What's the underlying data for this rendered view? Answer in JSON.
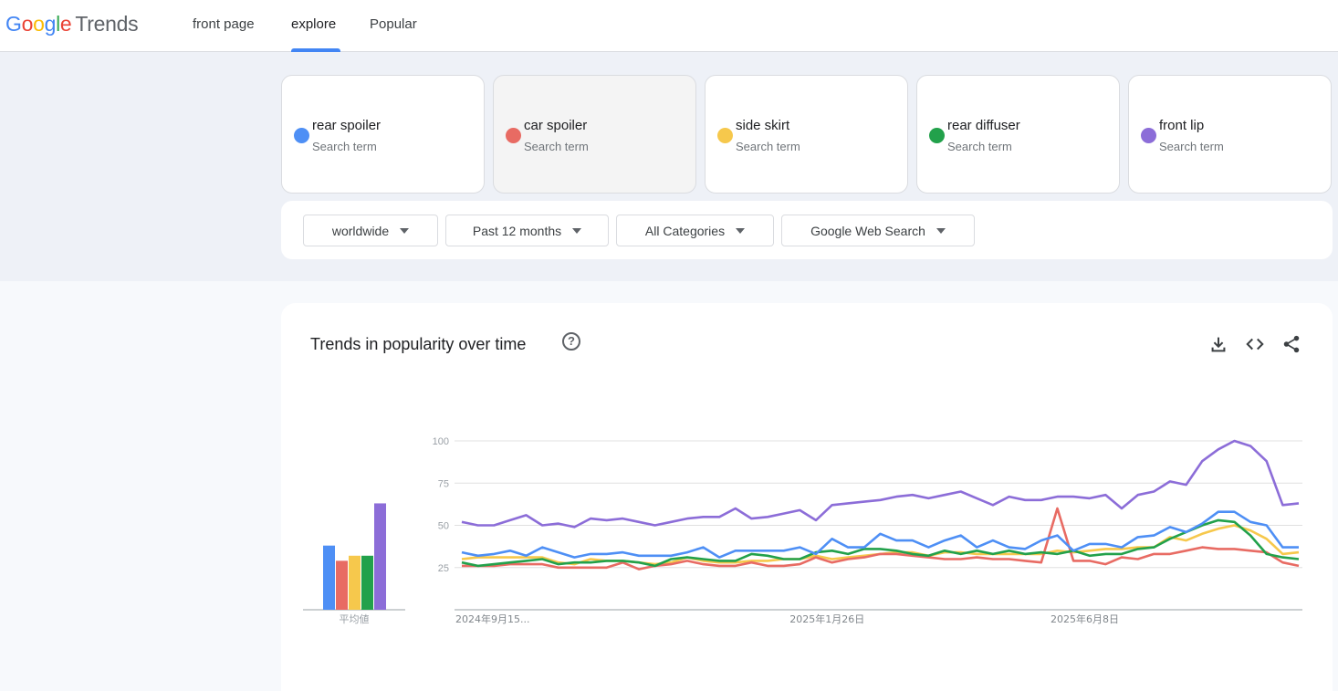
{
  "header": {
    "logo_google": [
      "G",
      "o",
      "o",
      "g",
      "l",
      "e"
    ],
    "logo_trends": "Trends",
    "tabs": [
      {
        "label": "front page",
        "active": false
      },
      {
        "label": "explore",
        "active": true
      },
      {
        "label": "Popular",
        "active": false
      }
    ]
  },
  "terms": [
    {
      "name": "rear spoiler",
      "sub": "Search term",
      "color": "#4e8ff5"
    },
    {
      "name": "car spoiler",
      "sub": "Search term",
      "color": "#e86b63"
    },
    {
      "name": "side skirt",
      "sub": "Search term",
      "color": "#f6c84c"
    },
    {
      "name": "rear diffuser",
      "sub": "Search term",
      "color": "#22a14b"
    },
    {
      "name": "front lip",
      "sub": "Search term",
      "color": "#8c6dd8"
    }
  ],
  "filters": {
    "region": "worldwide",
    "period": "Past 12 months",
    "category": "All Categories",
    "property": "Google Web Search"
  },
  "chart_panel": {
    "title": "Trends in popularity over time",
    "help_icon": "question-icon",
    "tools": [
      "download-icon",
      "embed-code-icon",
      "share-icon"
    ]
  },
  "chart_data": {
    "type": "line",
    "y_ticks": [
      "100",
      "75",
      "50",
      "25"
    ],
    "ylim": [
      0,
      100
    ],
    "x_tick_labels": [
      "2024年9月15...",
      "2025年1月26日",
      "2025年6月8日"
    ],
    "avg_label": "平均値",
    "averages": [
      38,
      29,
      32,
      32,
      63
    ],
    "series": [
      {
        "name": "rear spoiler",
        "color": "#4e8ff5",
        "values": [
          34,
          32,
          33,
          35,
          32,
          37,
          34,
          31,
          33,
          33,
          34,
          32,
          32,
          32,
          34,
          37,
          31,
          35,
          35,
          35,
          35,
          37,
          33,
          42,
          37,
          37,
          45,
          41,
          41,
          37,
          41,
          44,
          37,
          41,
          37,
          36,
          41,
          44,
          35,
          39,
          39,
          37,
          43,
          44,
          49,
          46,
          51,
          58,
          58,
          52,
          50,
          37,
          37
        ]
      },
      {
        "name": "car spoiler",
        "color": "#e86b63",
        "values": [
          26,
          26,
          26,
          27,
          27,
          27,
          25,
          25,
          25,
          25,
          28,
          24,
          26,
          27,
          29,
          27,
          26,
          26,
          28,
          26,
          26,
          27,
          31,
          28,
          30,
          31,
          33,
          33,
          32,
          31,
          30,
          30,
          31,
          30,
          30,
          29,
          28,
          60,
          29,
          29,
          27,
          31,
          30,
          33,
          33,
          35,
          37,
          36,
          36,
          35,
          34,
          28,
          26
        ]
      },
      {
        "name": "side skirt",
        "color": "#f6c84c",
        "values": [
          30,
          31,
          31,
          31,
          31,
          31,
          28,
          27,
          30,
          29,
          29,
          28,
          27,
          28,
          31,
          29,
          28,
          28,
          29,
          29,
          30,
          30,
          32,
          30,
          31,
          32,
          33,
          34,
          34,
          32,
          34,
          34,
          33,
          33,
          33,
          33,
          33,
          35,
          34,
          35,
          36,
          36,
          37,
          37,
          43,
          41,
          45,
          48,
          50,
          47,
          42,
          33,
          34
        ]
      },
      {
        "name": "rear diffuser",
        "color": "#22a14b",
        "values": [
          28,
          26,
          27,
          28,
          29,
          30,
          27,
          28,
          28,
          29,
          29,
          28,
          26,
          30,
          31,
          30,
          29,
          29,
          33,
          32,
          30,
          30,
          34,
          35,
          33,
          36,
          36,
          35,
          33,
          32,
          35,
          33,
          35,
          33,
          35,
          33,
          34,
          33,
          35,
          32,
          33,
          33,
          36,
          37,
          42,
          46,
          50,
          53,
          52,
          44,
          33,
          31,
          30
        ]
      },
      {
        "name": "front lip",
        "color": "#8c6dd8",
        "values": [
          52,
          50,
          50,
          53,
          56,
          50,
          51,
          49,
          54,
          53,
          54,
          52,
          50,
          52,
          54,
          55,
          55,
          60,
          54,
          55,
          57,
          59,
          53,
          62,
          63,
          64,
          65,
          67,
          68,
          66,
          68,
          70,
          66,
          62,
          67,
          65,
          65,
          67,
          67,
          66,
          68,
          60,
          68,
          70,
          76,
          74,
          88,
          95,
          100,
          97,
          88,
          62,
          63
        ]
      }
    ]
  }
}
